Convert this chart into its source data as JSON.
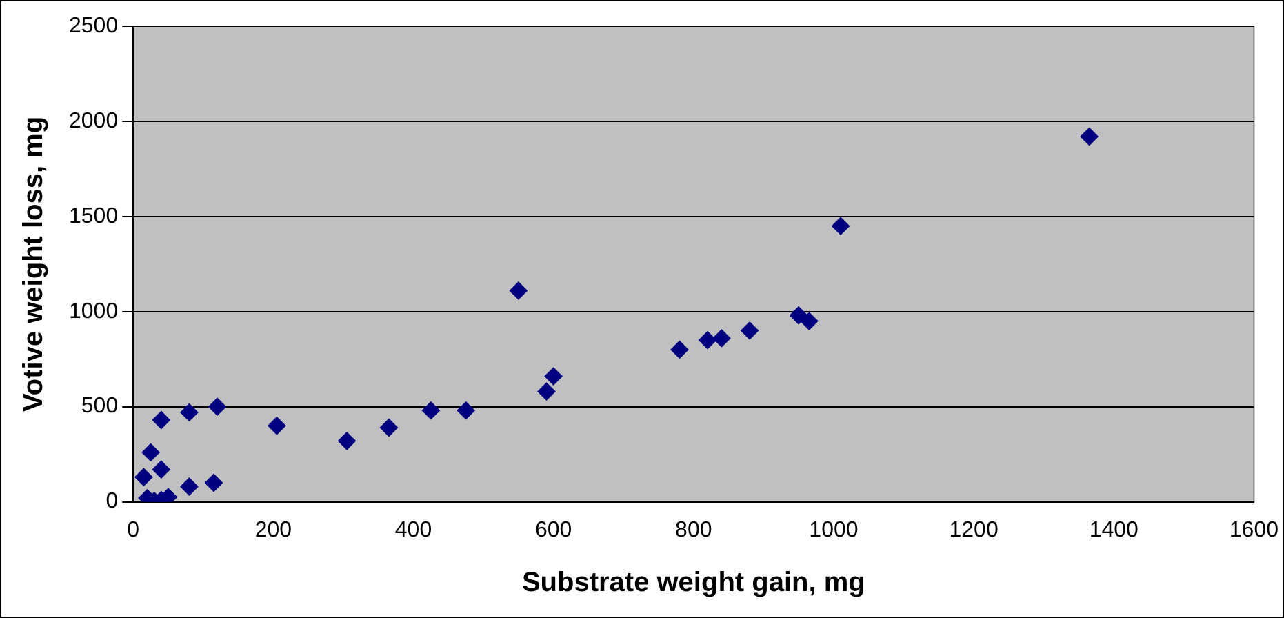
{
  "chart_data": {
    "type": "scatter",
    "xlabel": "Substrate weight gain, mg",
    "ylabel": "Votive weight loss, mg",
    "x": [
      15,
      25,
      40,
      40,
      20,
      30,
      40,
      50,
      80,
      80,
      115,
      120,
      205,
      305,
      365,
      425,
      475,
      550,
      590,
      600,
      780,
      820,
      840,
      880,
      950,
      965,
      1010,
      1365
    ],
    "series": [
      {
        "color": "#000080",
        "values": [
          130,
          260,
          430,
          170,
          20,
          5,
          10,
          25,
          470,
          80,
          100,
          500,
          400,
          320,
          390,
          480,
          480,
          1110,
          580,
          660,
          800,
          850,
          860,
          900,
          980,
          950,
          1450,
          1920
        ]
      }
    ],
    "xlim": [
      0,
      1600
    ],
    "xticks": [
      0,
      200,
      400,
      600,
      800,
      1000,
      1200,
      1400,
      1600
    ],
    "ylim": [
      0,
      2500
    ],
    "yticks": [
      0,
      500,
      1000,
      1500,
      2000,
      2500
    ],
    "grid": "y",
    "legend": false,
    "marker": "diamond"
  }
}
